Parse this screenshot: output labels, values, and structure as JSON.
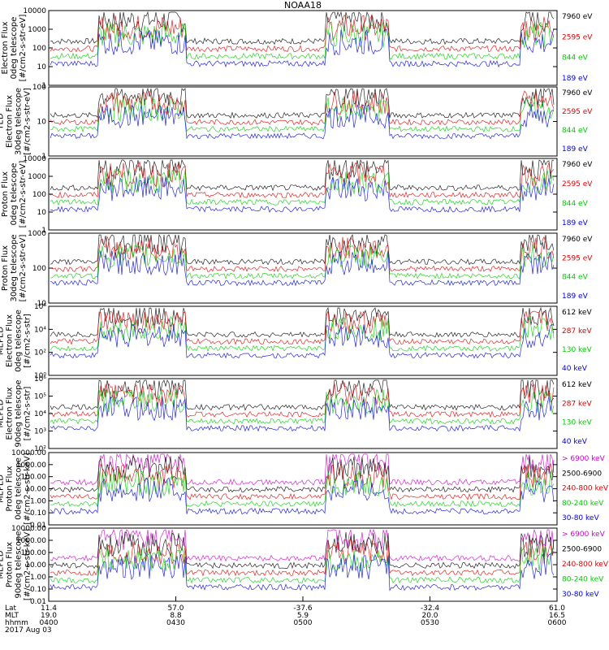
{
  "chart_data": {
    "type": "line",
    "title": "NOAA18",
    "date_label": "2017 Aug 03",
    "footer": {
      "row_labels": [
        "Lat",
        "MLT",
        "hhmm"
      ],
      "ticks": [
        {
          "lat": "11.4",
          "mlt": "19.0",
          "hhmm": "0400"
        },
        {
          "lat": "57.0",
          "mlt": "8.8",
          "hhmm": "0430"
        },
        {
          "lat": "-37.6",
          "mlt": "5.9",
          "hhmm": "0500"
        },
        {
          "lat": "-32.4",
          "mlt": "20.0",
          "hhmm": "0530"
        },
        {
          "lat": "61.0",
          "mlt": "16.5",
          "hhmm": "0600"
        }
      ]
    },
    "panels": [
      {
        "ylabel": [
          "Electron Flux",
          "0deg telescope",
          "[#/cm2-s-str-eV]"
        ],
        "yticks": [
          "10000",
          "1000",
          "100",
          "10",
          "1"
        ],
        "legend": [
          {
            "label": "7960 eV",
            "color": "#000000"
          },
          {
            "label": "2595 eV",
            "color": "#dd0000"
          },
          {
            "label": "844 eV",
            "color": "#00cc00"
          },
          {
            "label": "189 eV",
            "color": "#0000dd"
          }
        ]
      },
      {
        "ylabel": [
          "TED",
          "Electron Flux",
          "30deg telescope",
          "[#/cm2-s-str-eV]"
        ],
        "yticks": [
          "100",
          "10",
          "1"
        ],
        "legend": [
          {
            "label": "7960 eV",
            "color": "#000000"
          },
          {
            "label": "2595 eV",
            "color": "#dd0000"
          },
          {
            "label": "844 eV",
            "color": "#00cc00"
          },
          {
            "label": "189 eV",
            "color": "#0000dd"
          }
        ]
      },
      {
        "ylabel": [
          "Proton Flux",
          "0deg telescope",
          "[#/cm2-s-str-eV]"
        ],
        "yticks": [
          "10000",
          "1000",
          "100",
          "10",
          "1"
        ],
        "legend": [
          {
            "label": "7960 eV",
            "color": "#000000"
          },
          {
            "label": "2595 eV",
            "color": "#dd0000"
          },
          {
            "label": "844 eV",
            "color": "#00cc00"
          },
          {
            "label": "189 eV",
            "color": "#0000dd"
          }
        ]
      },
      {
        "ylabel": [
          "Proton Flux",
          "30deg telescope",
          "[#/cm2-s-str-eV]"
        ],
        "yticks": [
          "1000",
          "100",
          "10"
        ],
        "legend": [
          {
            "label": "7960 eV",
            "color": "#000000"
          },
          {
            "label": "2595 eV",
            "color": "#dd0000"
          },
          {
            "label": "844 eV",
            "color": "#00cc00"
          },
          {
            "label": "189 eV",
            "color": "#0000dd"
          }
        ]
      },
      {
        "ylabel": [
          "MEPED",
          "Electron Flux",
          "0deg telescope",
          "[#/cm2-s-str]"
        ],
        "yticks": [
          "10⁶",
          "10⁴",
          "10²",
          "10⁰"
        ],
        "legend": [
          {
            "label": "612 keV",
            "color": "#000000"
          },
          {
            "label": "287 keV",
            "color": "#dd0000"
          },
          {
            "label": "130 keV",
            "color": "#00cc00"
          },
          {
            "label": "40 keV",
            "color": "#0000dd"
          }
        ]
      },
      {
        "ylabel": [
          "MEPED",
          "Electron Flux",
          "90deg telescope",
          "[#/cm2-s-str]"
        ],
        "yticks": [
          "10⁶",
          "10⁵",
          "10⁴",
          "10³",
          "10²"
        ],
        "legend": [
          {
            "label": "612 keV",
            "color": "#000000"
          },
          {
            "label": "287 keV",
            "color": "#dd0000"
          },
          {
            "label": "130 keV",
            "color": "#00cc00"
          },
          {
            "label": "40 keV",
            "color": "#0000dd"
          }
        ]
      },
      {
        "ylabel": [
          "MEPED",
          "Proton Flux",
          "0deg telescope",
          "[#/cm2-s-str-keV]"
        ],
        "yticks": [
          "10000.00",
          "1000.00",
          "100.00",
          "10.00",
          "1.00",
          "0.10",
          "0.01"
        ],
        "legend": [
          {
            "label": "> 6900 keV",
            "color": "#cc00cc"
          },
          {
            "label": "2500-6900",
            "color": "#000000"
          },
          {
            "label": "240-800 keV",
            "color": "#dd0000"
          },
          {
            "label": "80-240 keV",
            "color": "#00cc00"
          },
          {
            "label": "30-80 keV",
            "color": "#0000dd"
          }
        ]
      },
      {
        "ylabel": [
          "MEPED",
          "Proton Flux",
          "90deg telescope",
          "[#/cm2-s-str-keV]"
        ],
        "yticks": [
          "10000.00",
          "1000.00",
          "100.00",
          "10.00",
          "1.00",
          "0.10",
          "0.01"
        ],
        "legend": [
          {
            "label": "> 6900 keV",
            "color": "#cc00cc"
          },
          {
            "label": "2500-6900",
            "color": "#000000"
          },
          {
            "label": "240-800 keV",
            "color": "#dd0000"
          },
          {
            "label": "80-240 keV",
            "color": "#00cc00"
          },
          {
            "label": "30-80 keV",
            "color": "#0000dd"
          }
        ]
      }
    ]
  }
}
